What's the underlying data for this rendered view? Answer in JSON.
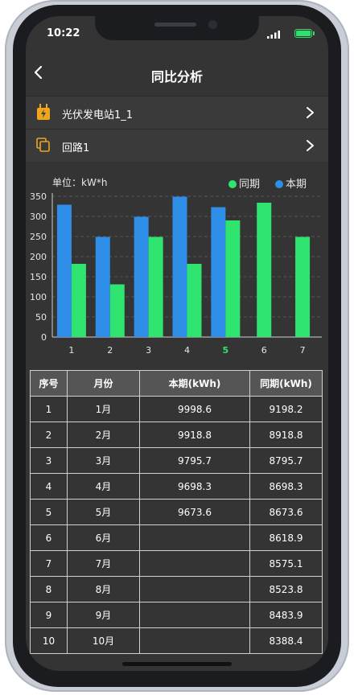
{
  "status": {
    "time": "10:22"
  },
  "header": {
    "title": "同比分析"
  },
  "station": {
    "label": "光伏发电站1_1"
  },
  "circuit": {
    "label": "回路1"
  },
  "colors": {
    "current": "#2f8ee8",
    "previous": "#2fe46f",
    "highlight": "#2fe46f",
    "background": "#343434"
  },
  "chart_data": {
    "type": "bar",
    "unit_label": "单位：kW*h",
    "categories": [
      "1",
      "2",
      "3",
      "4",
      "5",
      "6",
      "7"
    ],
    "highlight_category": "5",
    "series": [
      {
        "name": "本期",
        "values": [
          329,
          249,
          299,
          349,
          323,
          null,
          null
        ]
      },
      {
        "name": "同期",
        "values": [
          182,
          131,
          249,
          182,
          290,
          334,
          249
        ]
      }
    ],
    "yticks": [
      0,
      50,
      100,
      150,
      200,
      250,
      300,
      350
    ],
    "ylim": [
      0,
      350
    ],
    "grid": true,
    "legend": "top-right"
  },
  "table": {
    "headers": [
      "序号",
      "月份",
      "本期(kWh)",
      "同期(kWh)"
    ],
    "rows": [
      [
        "1",
        "1月",
        "9998.6",
        "9198.2"
      ],
      [
        "2",
        "2月",
        "9918.8",
        "8918.8"
      ],
      [
        "3",
        "3月",
        "9795.7",
        "8795.7"
      ],
      [
        "4",
        "4月",
        "9698.3",
        "8698.3"
      ],
      [
        "5",
        "5月",
        "9673.6",
        "8673.6"
      ],
      [
        "6",
        "6月",
        "",
        "8618.9"
      ],
      [
        "7",
        "7月",
        "",
        "8575.1"
      ],
      [
        "8",
        "8月",
        "",
        "8523.8"
      ],
      [
        "9",
        "9月",
        "",
        "8483.9"
      ],
      [
        "10",
        "10月",
        "",
        "8388.4"
      ]
    ]
  }
}
